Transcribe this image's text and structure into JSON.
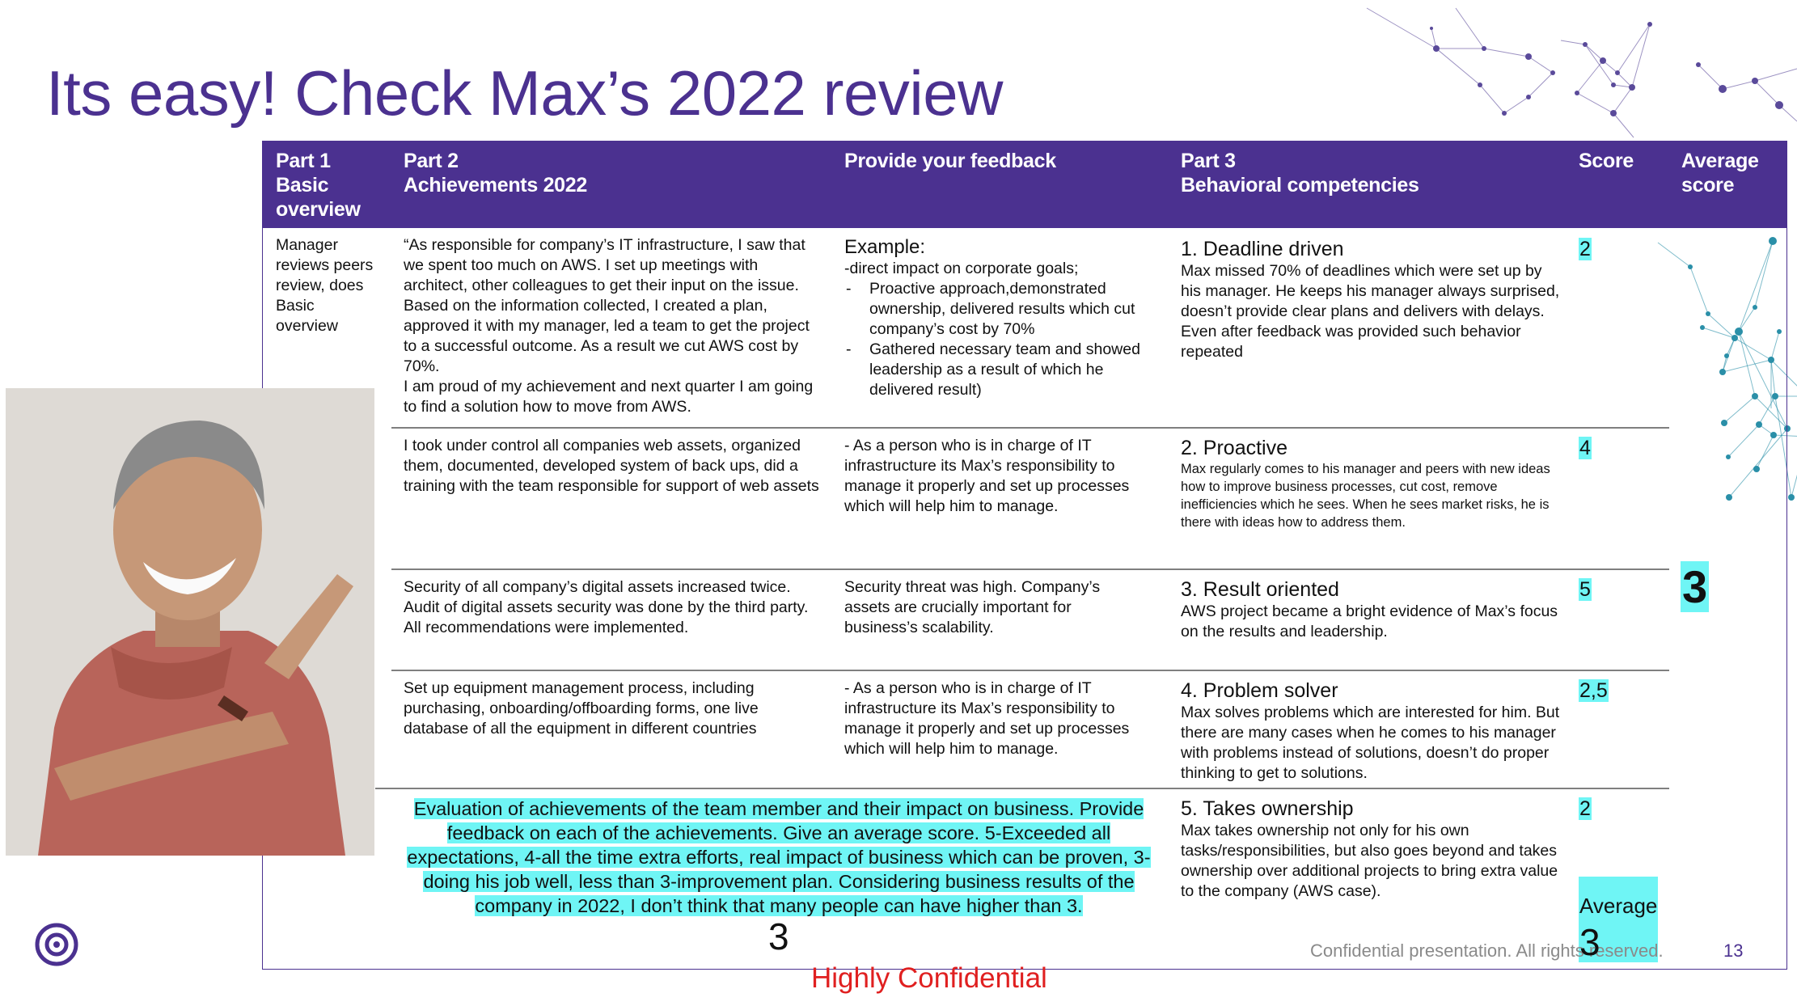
{
  "title": "Its easy! Check Max’s 2022 review",
  "table": {
    "headers": {
      "part1": [
        "Part 1",
        "Basic",
        "overview"
      ],
      "part2": [
        "Part 2",
        "Achievements 2022"
      ],
      "feedback": [
        "Provide your feedback"
      ],
      "part3": [
        "Part 3",
        "Behavioral competencies"
      ],
      "score": [
        "Score"
      ],
      "average": [
        "Average",
        "score"
      ]
    },
    "basic_overview": "Manager reviews peers review, does Basic overview",
    "achievements": [
      "“As responsible for company’s IT infrastructure, I saw that we spent too much on AWS. I set up meetings with architect, other colleagues to get their input on the issue. Based on the information collected, I created a plan, approved it with my manager, led a team to get the project to a successful outcome. As a result we cut AWS cost by 70%.",
      "I took under control all companies web assets, organized them, documented, developed system of back ups, did a training with the team responsible for support of web assets",
      "Security of all company’s digital assets increased twice. Audit of digital assets security was done by the third party. All recommendations were implemented.",
      "Set up equipment management process, including purchasing, onboarding/offboarding forms, one live database of all the equipment in different countries"
    ],
    "achievement1_extra": "I am proud of my achievement and next quarter I am going to find a solution how to move from AWS.",
    "feedback": {
      "example_title": "Example:",
      "example_line": "-direct impact on corporate goals;",
      "example_bullets": [
        "Proactive approach,demonstrated ownership, delivered results which cut company’s cost by 70%",
        "Gathered necessary team and showed leadership as a result of which he delivered result)"
      ],
      "row2": "- As a person who is in charge of IT infrastructure its Max’s responsibility to manage it properly and set up processes which will help him to manage.",
      "row3": "Security threat was high. Company’s assets are crucially important for business’s scalability.",
      "row4": "- As a person who is in charge of IT infrastructure its Max’s responsibility to manage it properly and set up processes which will help him to manage."
    },
    "competencies": [
      {
        "title": "1.   Deadline driven",
        "body": "Max missed 70% of deadlines which were set up by his manager. He keeps his manager always surprised, doesn’t provide clear plans and delivers with delays.",
        "body2": "Even after feedback was provided such behavior repeated"
      },
      {
        "title": "2. Proactive",
        "body": "Max regularly comes to his manager and peers with new ideas how to improve business processes, cut cost, remove inefficiencies which he sees. When he sees market risks, he is there with ideas how to address them."
      },
      {
        "title": "3. Result oriented",
        "body": "AWS project became a bright evidence of Max’s focus on the results and leadership."
      },
      {
        "title": "4. Problem solver",
        "body": "Max solves problems which are interested for him. But there are many cases when he comes to his manager with problems instead of solutions, doesn’t do proper thinking to get to solutions."
      },
      {
        "title": "5. Takes ownership",
        "body": "Max takes ownership not only for his own tasks/responsibilities, but also goes beyond and takes ownership over additional projects to bring extra value to the company (AWS case)."
      }
    ],
    "scores": [
      "2",
      "4",
      "5",
      "2,5",
      "2"
    ],
    "average_score_big": "3",
    "evaluation_note": "Evaluation of achievements of the team member and their impact on business. Provide feedback on each of the achievements. Give an average score. 5-Exceeded all expectations, 4-all the time extra efforts, real impact of business which can be proven, 3-doing his job well, less than 3-improvement plan.  Considering business results of the company in 2022, I don’t think that many people can have higher than 3.",
    "evaluation_score": "3",
    "average_label": "Average",
    "average_value": "3"
  },
  "footer": {
    "copyright": "Confidential presentation. All rights reserved.",
    "page_number": "13",
    "classification": "Highly Confidential"
  },
  "colors": {
    "brand_purple": "#4b3190",
    "highlight_cyan": "#6ff5f5",
    "confidential_red": "#e02020"
  },
  "icons": [
    "logo-ring-icon",
    "network-graphic"
  ]
}
